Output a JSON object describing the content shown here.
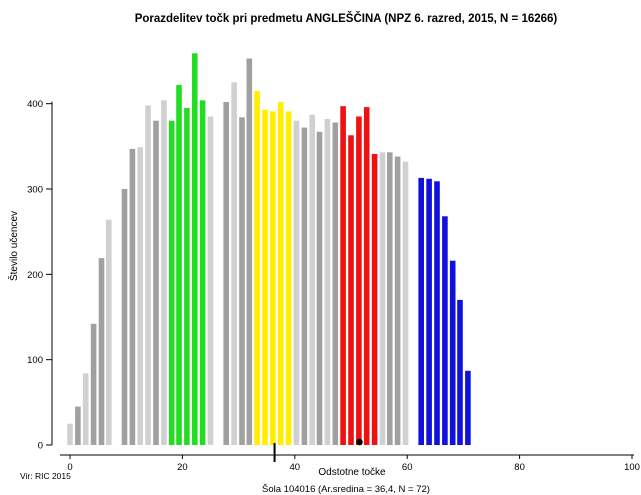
{
  "chart_data": {
    "type": "bar",
    "title": "Porazdelitev točk pri predmetu ANGLEŠČINA (NPZ 6. razred, 2015, N = 16266)",
    "xlabel": "Odstotne točke",
    "ylabel": "Število učencev",
    "source": "Vir: RIC 2015",
    "school_note": "Šola 104016 (Ar.sredina = 36,4, N = 72)",
    "xlim": [
      0,
      100
    ],
    "ylim": [
      0,
      460
    ],
    "x_ticks": [
      0,
      20,
      40,
      60,
      80,
      100
    ],
    "y_ticks": [
      0,
      100,
      200,
      300,
      400
    ],
    "school_mean": 36.4,
    "marker_point": 51.5,
    "colors": {
      "light_gray": "#d0d0d0",
      "dark_gray": "#a0a0a0",
      "green": "#22dd22",
      "yellow": "#ffee00",
      "red": "#ee1111",
      "blue": "#1111dd"
    },
    "bars": [
      {
        "x": 0.0,
        "value": 25,
        "color": "light_gray"
      },
      {
        "x": 1.4,
        "value": 45,
        "color": "dark_gray"
      },
      {
        "x": 2.8,
        "value": 84,
        "color": "light_gray"
      },
      {
        "x": 4.2,
        "value": 142,
        "color": "dark_gray"
      },
      {
        "x": 5.6,
        "value": 219,
        "color": "dark_gray"
      },
      {
        "x": 6.9,
        "value": 264,
        "color": "light_gray"
      },
      {
        "x": 9.7,
        "value": 300,
        "color": "dark_gray"
      },
      {
        "x": 11.1,
        "value": 347,
        "color": "dark_gray"
      },
      {
        "x": 12.5,
        "value": 349,
        "color": "light_gray"
      },
      {
        "x": 13.9,
        "value": 398,
        "color": "light_gray"
      },
      {
        "x": 15.3,
        "value": 380,
        "color": "dark_gray"
      },
      {
        "x": 16.7,
        "value": 404,
        "color": "light_gray"
      },
      {
        "x": 18.1,
        "value": 380,
        "color": "green"
      },
      {
        "x": 19.4,
        "value": 422,
        "color": "green"
      },
      {
        "x": 20.8,
        "value": 395,
        "color": "green"
      },
      {
        "x": 22.2,
        "value": 459,
        "color": "green"
      },
      {
        "x": 23.6,
        "value": 404,
        "color": "green"
      },
      {
        "x": 25.0,
        "value": 385,
        "color": "light_gray"
      },
      {
        "x": 27.8,
        "value": 402,
        "color": "dark_gray"
      },
      {
        "x": 29.2,
        "value": 425,
        "color": "light_gray"
      },
      {
        "x": 30.6,
        "value": 384,
        "color": "dark_gray"
      },
      {
        "x": 31.9,
        "value": 453,
        "color": "dark_gray"
      },
      {
        "x": 33.3,
        "value": 415,
        "color": "yellow"
      },
      {
        "x": 34.7,
        "value": 393,
        "color": "yellow"
      },
      {
        "x": 36.1,
        "value": 391,
        "color": "yellow"
      },
      {
        "x": 37.5,
        "value": 402,
        "color": "yellow"
      },
      {
        "x": 38.9,
        "value": 391,
        "color": "yellow"
      },
      {
        "x": 40.3,
        "value": 380,
        "color": "light_gray"
      },
      {
        "x": 41.7,
        "value": 372,
        "color": "dark_gray"
      },
      {
        "x": 43.1,
        "value": 387,
        "color": "light_gray"
      },
      {
        "x": 44.4,
        "value": 367,
        "color": "dark_gray"
      },
      {
        "x": 45.8,
        "value": 382,
        "color": "light_gray"
      },
      {
        "x": 47.2,
        "value": 378,
        "color": "dark_gray"
      },
      {
        "x": 48.6,
        "value": 397,
        "color": "red"
      },
      {
        "x": 50.0,
        "value": 363,
        "color": "red"
      },
      {
        "x": 51.4,
        "value": 385,
        "color": "red"
      },
      {
        "x": 52.8,
        "value": 396,
        "color": "red"
      },
      {
        "x": 54.2,
        "value": 341,
        "color": "red"
      },
      {
        "x": 55.6,
        "value": 343,
        "color": "light_gray"
      },
      {
        "x": 56.9,
        "value": 343,
        "color": "dark_gray"
      },
      {
        "x": 58.3,
        "value": 338,
        "color": "dark_gray"
      },
      {
        "x": 59.7,
        "value": 332,
        "color": "light_gray"
      },
      {
        "x": 62.5,
        "value": 313,
        "color": "blue"
      },
      {
        "x": 63.9,
        "value": 312,
        "color": "blue"
      },
      {
        "x": 65.3,
        "value": 309,
        "color": "blue"
      },
      {
        "x": 66.7,
        "value": 268,
        "color": "blue"
      },
      {
        "x": 68.1,
        "value": 216,
        "color": "blue"
      },
      {
        "x": 69.4,
        "value": 170,
        "color": "blue"
      },
      {
        "x": 70.8,
        "value": 87,
        "color": "blue"
      }
    ]
  }
}
